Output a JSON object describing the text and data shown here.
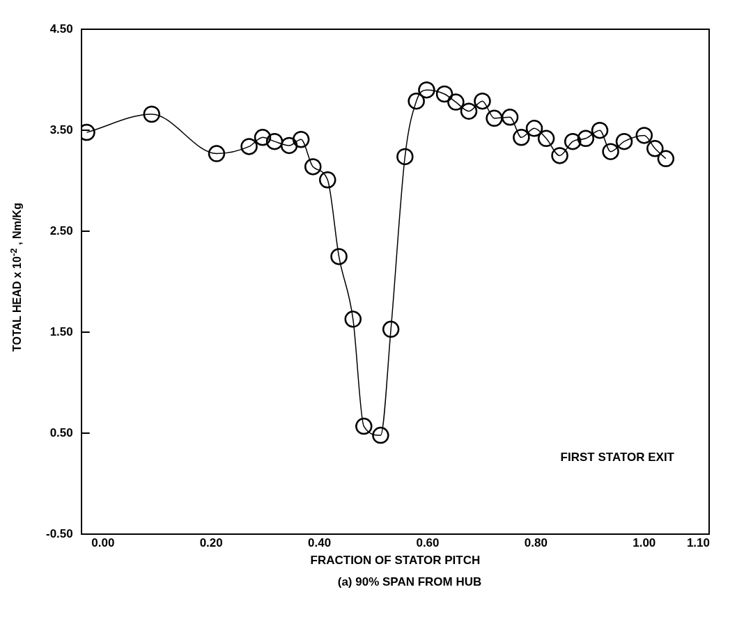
{
  "chart_data": {
    "type": "line",
    "xlabel": "FRACTION OF STATOR PITCH",
    "ylabel": "TOTAL HEAD x 10$^{-2}$ , Nm/Kg",
    "annotations": [
      "FIRST STATOR EXIT",
      "(a)  90% SPAN FROM HUB"
    ],
    "series": [
      {
        "color": "#000000",
        "x": [
          -0.03,
          0.09,
          0.21,
          0.27,
          0.295,
          0.317,
          0.344,
          0.366,
          0.388,
          0.415,
          0.436,
          0.462,
          0.482,
          0.513,
          0.532,
          0.558,
          0.579,
          0.598,
          0.631,
          0.652,
          0.676,
          0.701,
          0.723,
          0.752,
          0.773,
          0.797,
          0.819,
          0.844,
          0.868,
          0.892,
          0.918,
          0.938,
          0.963,
          1.0,
          1.02,
          1.04
        ],
        "values": [
          3.48,
          3.66,
          3.27,
          3.34,
          3.43,
          3.39,
          3.35,
          3.41,
          3.14,
          3.01,
          2.25,
          1.63,
          0.57,
          0.48,
          1.53,
          3.24,
          3.79,
          3.9,
          3.86,
          3.78,
          3.69,
          3.79,
          3.62,
          3.63,
          3.43,
          3.52,
          3.42,
          3.25,
          3.39,
          3.42,
          3.5,
          3.29,
          3.39,
          3.45,
          3.32,
          3.22
        ]
      }
    ],
    "xlim": [
      -0.04,
      1.12
    ],
    "ylim": [
      -0.5,
      4.5
    ],
    "xticks": [
      {
        "value": 0,
        "label": "0.00"
      },
      {
        "value": 0.2,
        "label": "0.20"
      },
      {
        "value": 0.4,
        "label": "0.40"
      },
      {
        "value": 0.6,
        "label": "0.60"
      },
      {
        "value": 0.8,
        "label": "0.80"
      },
      {
        "value": 1.0,
        "label": "1.00"
      },
      {
        "value": 1.1,
        "label": "1.10"
      }
    ],
    "yticks": [
      {
        "value": -0.5,
        "label": "-0.50"
      },
      {
        "value": 0.5,
        "label": "0.50"
      },
      {
        "value": 1.5,
        "label": "1.50"
      },
      {
        "value": 2.5,
        "label": "2.50"
      },
      {
        "value": 3.5,
        "label": "3.50"
      },
      {
        "value": 4.5,
        "label": "4.50"
      }
    ],
    "marker": "circle",
    "line_style": "solid",
    "grid": false,
    "legend": false
  }
}
